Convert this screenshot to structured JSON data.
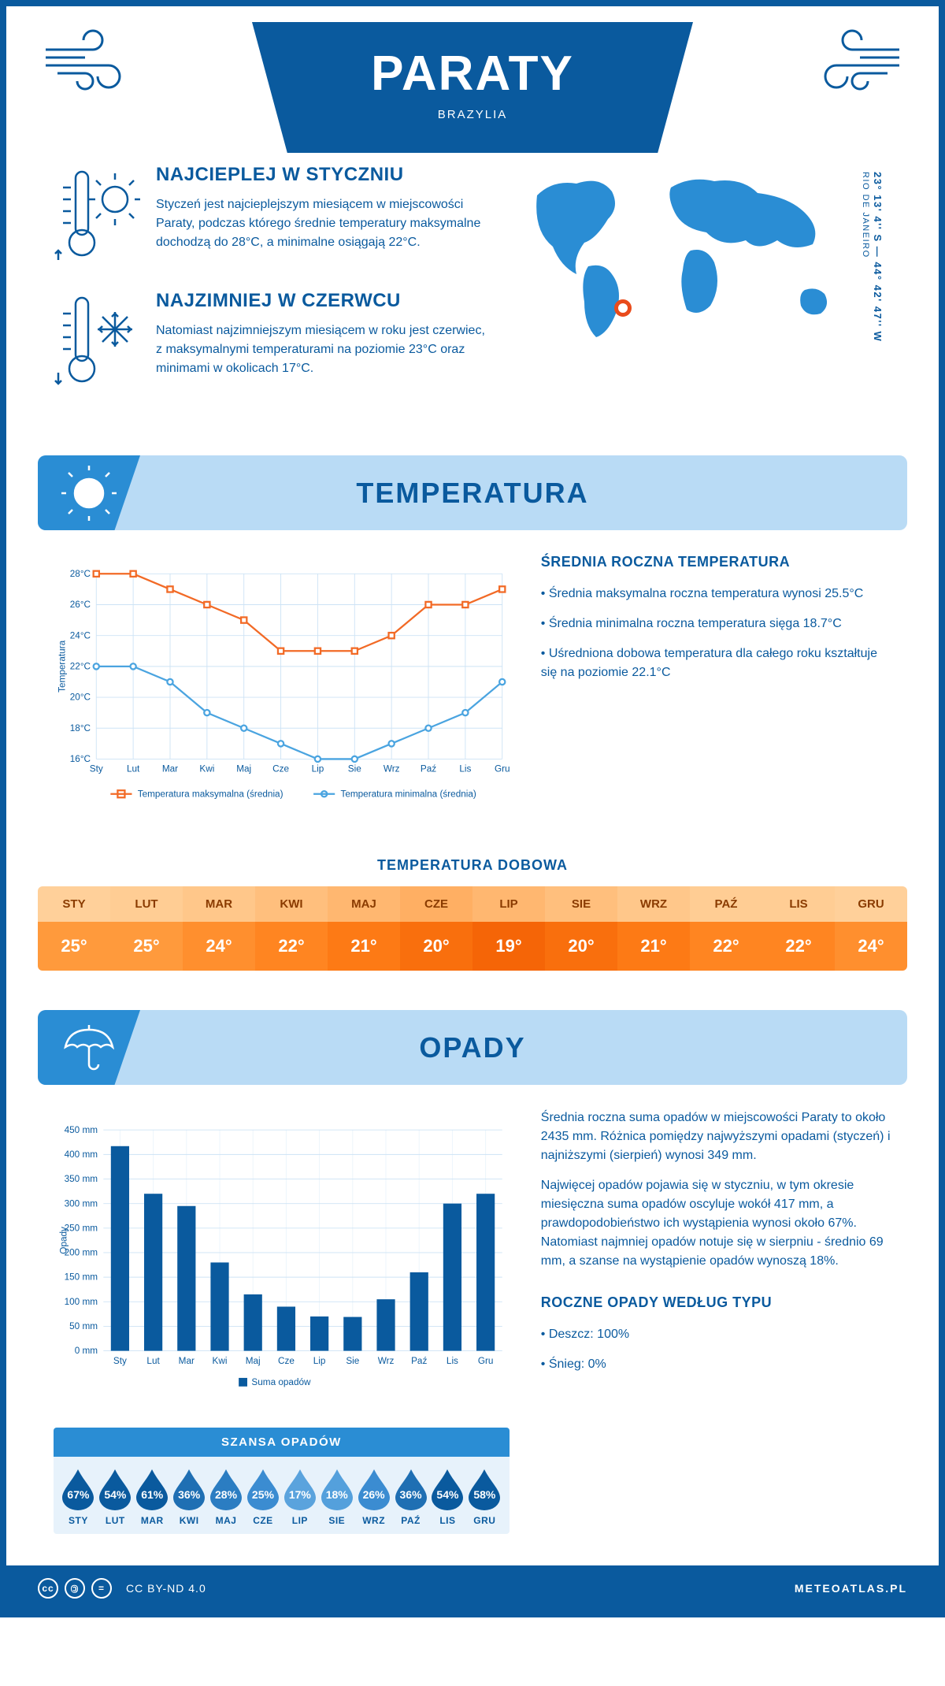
{
  "header": {
    "city": "PARATY",
    "country": "BRAZYLIA"
  },
  "intro": {
    "warm": {
      "title": "NAJCIEPLEJ W STYCZNIU",
      "text": "Styczeń jest najcieplejszym miesiącem w miejscowości Paraty, podczas którego średnie temperatury maksymalne dochodzą do 28°C, a minimalne osiągają 22°C."
    },
    "cold": {
      "title": "NAJZIMNIEJ W CZERWCU",
      "text": "Natomiast najzimniejszym miesiącem w roku jest czerwiec, z maksymalnymi temperaturami na poziomie 23°C oraz minimami w okolicach 17°C."
    },
    "coords": "23° 13' 4'' S — 44° 42' 47'' W",
    "region": "RIO DE JANEIRO",
    "marker_color": "#e94b1b",
    "map_fill": "#2a8dd4"
  },
  "temperature_section": {
    "title": "TEMPERATURA",
    "chart": {
      "type": "line",
      "months": [
        "Sty",
        "Lut",
        "Mar",
        "Kwi",
        "Maj",
        "Cze",
        "Lip",
        "Sie",
        "Wrz",
        "Paź",
        "Lis",
        "Gru"
      ],
      "y_label": "Temperatura",
      "y_ticks": [
        16,
        18,
        20,
        22,
        24,
        26,
        28
      ],
      "y_tick_labels": [
        "16°C",
        "18°C",
        "20°C",
        "22°C",
        "24°C",
        "26°C",
        "28°C"
      ],
      "y_lim": [
        16,
        28
      ],
      "series_max": {
        "label": "Temperatura maksymalna (średnia)",
        "color": "#f26a26",
        "values": [
          28,
          28,
          27,
          26,
          25,
          23,
          23,
          23,
          24,
          26,
          26,
          27
        ]
      },
      "series_min": {
        "label": "Temperatura minimalna (średnia)",
        "color": "#4aa4e0",
        "values": [
          22,
          22,
          21,
          19,
          18,
          17,
          16,
          16,
          17,
          18,
          19,
          21
        ]
      },
      "grid_color": "#cde3f5",
      "background": "#ffffff",
      "marker_radius": 4
    },
    "side": {
      "title": "ŚREDNIA ROCZNA TEMPERATURA",
      "bullets": [
        "Średnia maksymalna roczna temperatura wynosi 25.5°C",
        "Średnia minimalna roczna temperatura sięga 18.7°C",
        "Uśredniona dobowa temperatura dla całego roku kształtuje się na poziomie 22.1°C"
      ]
    },
    "daily": {
      "title": "TEMPERATURA DOBOWA",
      "months": [
        "STY",
        "LUT",
        "MAR",
        "KWI",
        "MAJ",
        "CZE",
        "LIP",
        "SIE",
        "WRZ",
        "PAŹ",
        "LIS",
        "GRU"
      ],
      "values": [
        "25°",
        "25°",
        "24°",
        "22°",
        "21°",
        "20°",
        "19°",
        "20°",
        "21°",
        "22°",
        "22°",
        "24°"
      ],
      "header_colors": [
        "#ffd09a",
        "#ffcd94",
        "#ffc78a",
        "#ffbf7d",
        "#ffb770",
        "#ffaf63",
        "#ffb770",
        "#ffbf7d",
        "#ffc78a",
        "#ffcd94",
        "#ffcd94",
        "#ffd09a"
      ],
      "value_colors": [
        "#ff9a3c",
        "#ff9a3c",
        "#ff8f2e",
        "#ff8521",
        "#fd7a15",
        "#f96f0d",
        "#f56507",
        "#f96f0d",
        "#fd7a15",
        "#ff8521",
        "#ff8521",
        "#ff8f2e"
      ]
    }
  },
  "precip_section": {
    "title": "OPADY",
    "chart": {
      "type": "bar",
      "months": [
        "Sty",
        "Lut",
        "Mar",
        "Kwi",
        "Maj",
        "Cze",
        "Lip",
        "Sie",
        "Wrz",
        "Paź",
        "Lis",
        "Gru"
      ],
      "y_label": "Opady",
      "y_ticks": [
        0,
        50,
        100,
        150,
        200,
        250,
        300,
        350,
        400,
        450
      ],
      "y_tick_labels": [
        "0 mm",
        "50 mm",
        "100 mm",
        "150 mm",
        "200 mm",
        "250 mm",
        "300 mm",
        "350 mm",
        "400 mm",
        "450 mm"
      ],
      "y_lim": [
        0,
        450
      ],
      "values": [
        417,
        320,
        295,
        180,
        115,
        90,
        70,
        69,
        105,
        160,
        300,
        320
      ],
      "bar_color": "#0a5a9e",
      "legend_label": "Suma opadów",
      "grid_color": "#cde3f5",
      "bar_width": 0.55
    },
    "side": {
      "p1": "Średnia roczna suma opadów w miejscowości Paraty to około 2435 mm. Różnica pomiędzy najwyższymi opadami (styczeń) i najniższymi (sierpień) wynosi 349 mm.",
      "p2": "Najwięcej opadów pojawia się w styczniu, w tym okresie miesięczna suma opadów oscyluje wokół 417 mm, a prawdopodobieństwo ich wystąpienia wynosi około 67%. Natomiast najmniej opadów notuje się w sierpniu - średnio 69 mm, a szanse na wystąpienie opadów wynoszą 18%.",
      "types_title": "ROCZNE OPADY WEDŁUG TYPU",
      "types": [
        "Deszcz: 100%",
        "Śnieg: 0%"
      ]
    },
    "chance": {
      "title": "SZANSA OPADÓW",
      "months": [
        "STY",
        "LUT",
        "MAR",
        "KWI",
        "MAJ",
        "CZE",
        "LIP",
        "SIE",
        "WRZ",
        "PAŹ",
        "LIS",
        "GRU"
      ],
      "values": [
        "67%",
        "54%",
        "61%",
        "36%",
        "28%",
        "25%",
        "17%",
        "18%",
        "26%",
        "36%",
        "54%",
        "58%"
      ],
      "colors": [
        "#0a5a9e",
        "#0a5a9e",
        "#0a5a9e",
        "#1f6fb3",
        "#2b7dc2",
        "#3b8cd1",
        "#5aa3dd",
        "#54a0dc",
        "#3b8cd1",
        "#1f6fb3",
        "#0a5a9e",
        "#0a5a9e"
      ]
    }
  },
  "footer": {
    "license": "CC BY-ND 4.0",
    "site": "METEOATLAS.PL"
  }
}
